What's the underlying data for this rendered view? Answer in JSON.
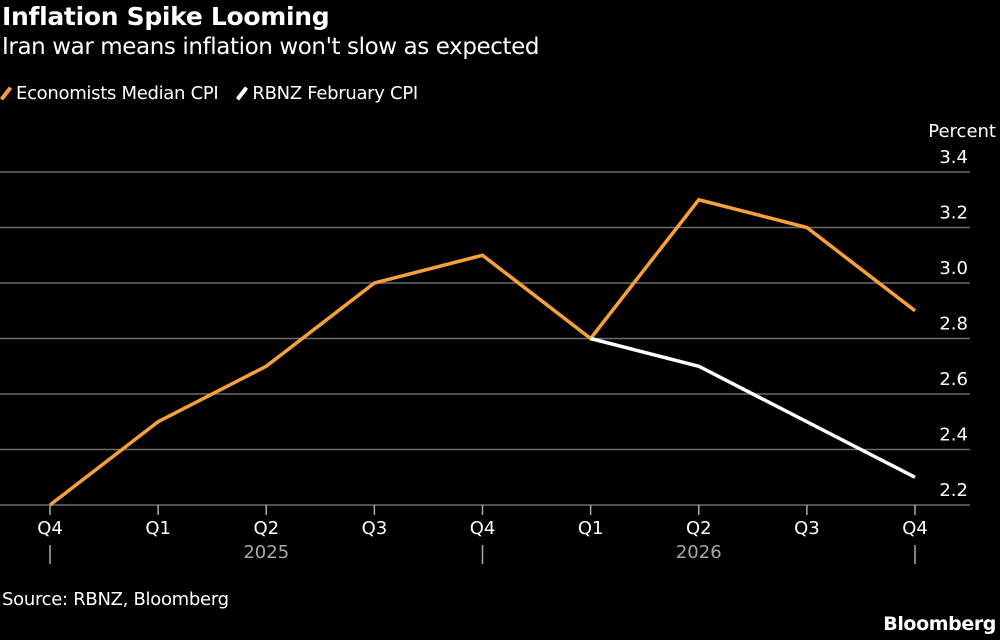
{
  "title": "Inflation Spike Looming",
  "subtitle": "Iran war means inflation won't slow as expected",
  "source": "Source: RBNZ, Bloomberg",
  "brand": "Bloomberg",
  "colors": {
    "background": "#000000",
    "economists": "#f5a03a",
    "rbnz": "#ffffff",
    "grid": "#6b6b6b",
    "year_label": "#a8a8a8"
  },
  "chart_data": {
    "type": "line",
    "title": "Inflation Spike Looming",
    "subtitle": "Iran war means inflation won't slow as expected",
    "ylabel": "Percent",
    "ylim": [
      2.2,
      3.4
    ],
    "yticks": [
      "2.2",
      "2.4",
      "2.6",
      "2.8",
      "3.0",
      "3.2",
      "3.4"
    ],
    "y_axis_side": "right",
    "grid": true,
    "legend": "top-left",
    "categories": [
      "Q4",
      "Q1",
      "Q2",
      "Q3",
      "Q4",
      "Q1",
      "Q2",
      "Q3",
      "Q4"
    ],
    "year_labels": [
      {
        "label": "2025",
        "category_index": 2
      },
      {
        "label": "2026",
        "category_index": 6
      }
    ],
    "series": [
      {
        "name": "Economists Median CPI",
        "color": "#f5a03a",
        "values": [
          2.2,
          2.5,
          2.7,
          3.0,
          3.1,
          2.8,
          3.3,
          3.2,
          2.9
        ]
      },
      {
        "name": "RBNZ February CPI",
        "color": "#ffffff",
        "values": [
          null,
          null,
          null,
          null,
          null,
          2.8,
          2.7,
          2.5,
          2.3
        ]
      }
    ]
  }
}
